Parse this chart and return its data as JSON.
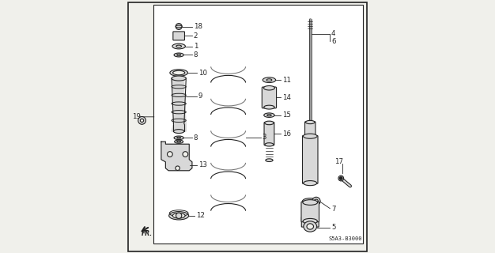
{
  "bg_color": "#f0f0eb",
  "line_color": "#222222",
  "part_color": "#d8d8d8",
  "diagram_code": "S5A3-B3000",
  "figsize": [
    6.26,
    3.2
  ],
  "dpi": 100
}
